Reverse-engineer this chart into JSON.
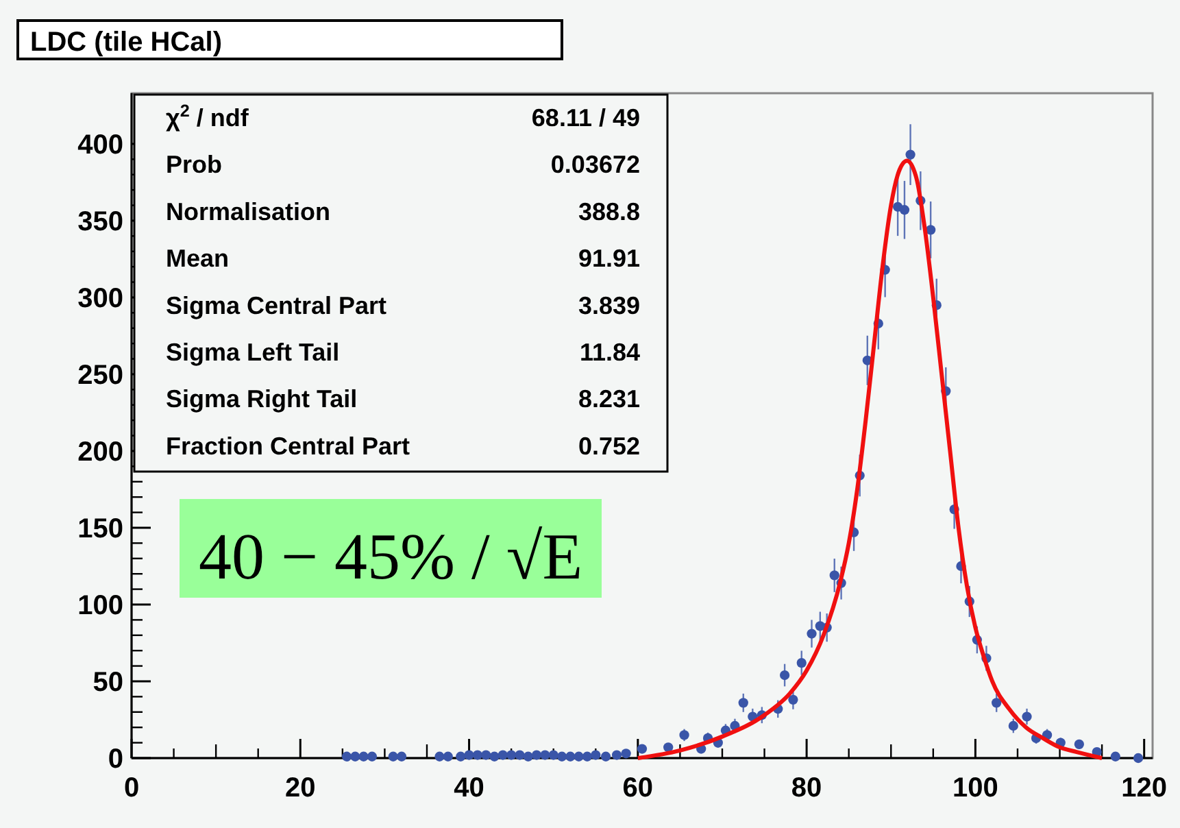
{
  "chart_data": {
    "type": "scatter",
    "title": "LDC (tile HCal)",
    "xlim": [
      0,
      121
    ],
    "xticks": [
      0,
      20,
      40,
      60,
      80,
      100,
      120
    ],
    "ylim": [
      0,
      433
    ],
    "yticks": [
      0,
      50,
      100,
      150,
      200,
      250,
      300,
      350,
      400
    ],
    "grid": false,
    "marker": "circle",
    "annotations": [
      "χ$^{2}$ / ndf\t68.11 / 49",
      "Prob\t0.03672",
      "Normalisation\t388.8",
      "Mean\t91.91",
      "Sigma Central Part\t3.839",
      "Sigma Left Tail\t11.84",
      "Sigma Right Tail\t8.231",
      "Fraction Central Part\t0.752",
      "40 − 45% / √E"
    ],
    "series": [
      {
        "color": "#3a55a8",
        "x": [
          25.5,
          26.5,
          27.5,
          28.5,
          31,
          32,
          36.5,
          37.5,
          39,
          40,
          41,
          42,
          43,
          44,
          45,
          46,
          47,
          48,
          49,
          50,
          51,
          52,
          53,
          54,
          55,
          56.2,
          57.5,
          58.6,
          60.5,
          63.6,
          65.5,
          67.5,
          68.3,
          69.5,
          70.4,
          71.5,
          72.5,
          73.6,
          74.7,
          76.6,
          77.4,
          78.4,
          79.4,
          80.6,
          81.6,
          82.4,
          83.3,
          84.1,
          85.6,
          86.3,
          87.2,
          88.5,
          89.3,
          90.8,
          91.6,
          92.3,
          93.5,
          94.7,
          95.4,
          96.5,
          97.5,
          98.3,
          99.3,
          100.2,
          101.3,
          102.5,
          104.5,
          106.1,
          107.2,
          108.5,
          110.1,
          112.3,
          114.4,
          116.6,
          119.3
        ],
        "values": [
          1,
          1,
          1,
          1,
          1,
          1,
          1,
          1,
          1,
          2,
          2,
          2,
          1,
          2,
          2,
          2,
          1,
          2,
          2,
          2,
          1,
          1,
          1,
          1,
          2,
          1,
          2,
          3,
          6,
          7,
          15,
          6,
          13,
          10,
          18,
          21,
          36,
          27,
          28,
          32,
          54,
          38,
          62,
          81,
          86,
          85,
          119,
          114,
          147,
          184,
          259,
          283,
          318,
          359,
          357,
          393,
          363,
          344,
          295,
          239,
          162,
          125,
          102,
          77,
          65,
          36,
          21,
          27,
          13,
          15,
          10,
          9,
          4,
          1,
          0
        ],
        "errors": [
          1,
          1,
          1,
          1,
          1,
          1,
          1,
          1,
          1,
          1.4,
          1.4,
          1.4,
          1,
          1.4,
          1.4,
          1.4,
          1,
          1.4,
          1.4,
          1.4,
          1,
          1,
          1,
          1,
          1.4,
          1,
          1.4,
          1.7,
          2.4,
          2.6,
          3.9,
          2.4,
          3.6,
          3.2,
          4.2,
          4.6,
          6,
          5.2,
          5.3,
          5.7,
          7.3,
          6.2,
          7.9,
          9,
          9.3,
          9.2,
          10.9,
          10.7,
          12.1,
          13.6,
          16.1,
          16.8,
          17.8,
          18.9,
          18.9,
          19.8,
          19.1,
          18.5,
          17.2,
          15.5,
          12.7,
          11.2,
          10.1,
          8.8,
          8.1,
          6,
          4.6,
          5.2,
          3.6,
          3.9,
          3.2,
          3,
          2,
          1,
          0
        ]
      },
      {
        "type": "line",
        "color": "#f01010",
        "marker": "none",
        "line_style": "solid",
        "x": [
          60,
          65,
          70,
          75,
          78,
          80,
          82,
          84,
          85,
          86,
          87,
          88,
          89,
          90,
          91,
          91.9,
          93,
          94,
          95,
          96,
          97,
          98,
          99,
          100,
          101,
          102,
          104,
          106,
          108,
          110,
          112,
          115
        ],
        "values": [
          0,
          5,
          14,
          28,
          42,
          57,
          80,
          115,
          140,
          175,
          220,
          270,
          320,
          360,
          383,
          389,
          378,
          345,
          300,
          250,
          200,
          150,
          112,
          85,
          66,
          50,
          32,
          20,
          13,
          7,
          4,
          0
        ]
      }
    ]
  }
}
